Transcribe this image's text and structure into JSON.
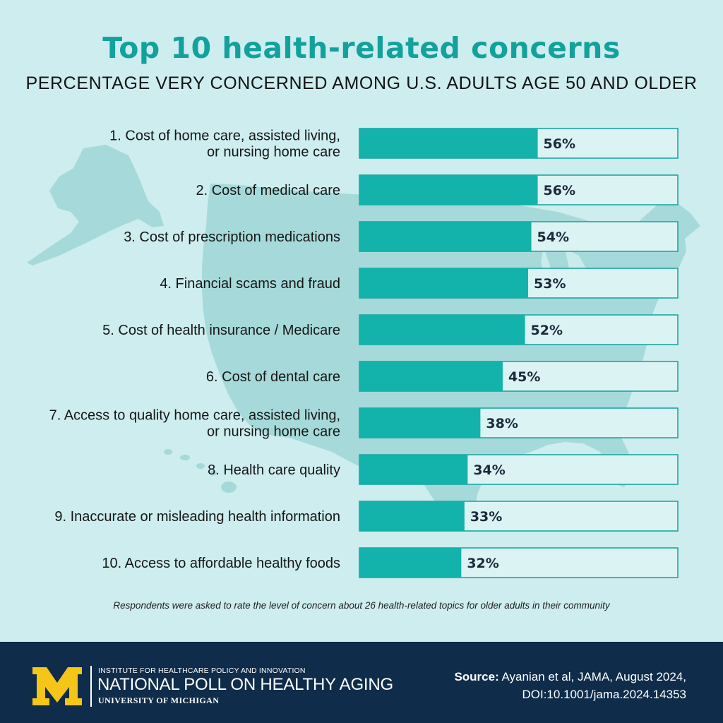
{
  "header": {
    "title": "Top 10 health-related concerns",
    "subtitle": "PERCENTAGE VERY CONCERNED AMONG U.S. ADULTS AGE 50 AND OLDER"
  },
  "chart_data": {
    "type": "bar",
    "orientation": "horizontal",
    "title": "Top 10 health-related concerns",
    "subtitle": "PERCENTAGE VERY CONCERNED AMONG U.S. ADULTS AGE 50 AND OLDER",
    "categories": [
      [
        "1. Cost of home care, assisted living,",
        "or nursing home care"
      ],
      [
        "2. Cost of medical care"
      ],
      [
        "3. Cost of prescription medications"
      ],
      [
        "4. Financial scams and fraud"
      ],
      [
        "5. Cost of health insurance / Medicare"
      ],
      [
        "6. Cost of dental care"
      ],
      [
        "7. Access to quality home care, assisted living,",
        "or nursing home care"
      ],
      [
        "8. Health care quality"
      ],
      [
        "9. Inaccurate or misleading health information"
      ],
      [
        "10. Access to affordable healthy foods"
      ]
    ],
    "values": [
      56,
      56,
      54,
      53,
      52,
      45,
      38,
      34,
      33,
      32
    ],
    "value_labels": [
      "56%",
      "56%",
      "54%",
      "53%",
      "52%",
      "45%",
      "38%",
      "34%",
      "33%",
      "32%"
    ],
    "xlim": [
      0,
      100
    ],
    "unit": "%",
    "grid": false,
    "legend": "none",
    "colors": {
      "bar_fill": "#13b2aa",
      "bar_outline": "#13a19c",
      "track_fill": "#dcf3f3",
      "background": "#cdedee"
    }
  },
  "footnote": "Respondents were asked to rate the level of concern about 26 health-related topics for older adults in their community",
  "footer": {
    "logo_letter": "M",
    "org_line1": "INSTITUTE FOR HEALTHCARE POLICY AND INNOVATION",
    "org_line2": "NATIONAL POLL ON HEALTHY AGING",
    "org_line3": "UNIVERSITY OF MICHIGAN",
    "source_label": "Source:",
    "source_text": " Ayanian et al, JAMA, August 2024,",
    "source_doi": "DOI:10.1001/jama.2024.14353",
    "colors": {
      "footer_bg": "#0f2c4a",
      "logo_maize": "#f5c518"
    }
  }
}
